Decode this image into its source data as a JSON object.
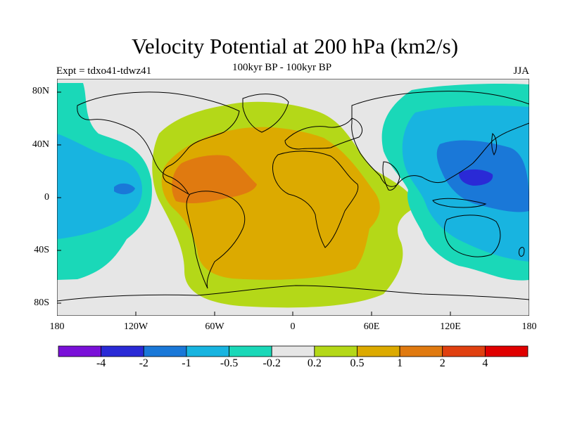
{
  "title": "Velocity Potential at 200 hPa (km2/s)",
  "left_label": "Expt = tdxo41-tdwz41",
  "center_label": "100kyr BP - 100kyr BP",
  "right_label": "JJA",
  "lat_ticks": [
    "80N",
    "40N",
    "0",
    "40S",
    "80S"
  ],
  "lon_ticks": [
    "180",
    "120W",
    "60W",
    "0",
    "60E",
    "120E",
    "180"
  ],
  "colorbar": {
    "colors": [
      "#7a10d8",
      "#2a2ad6",
      "#1a78d8",
      "#18b4e0",
      "#1ad8b8",
      "#e6e6e6",
      "#b4d818",
      "#dcaa00",
      "#e07a10",
      "#e04010",
      "#e00000"
    ],
    "labels": [
      "-4",
      "-2",
      "-1",
      "-0.5",
      "-0.2",
      "0.2",
      "0.5",
      "1",
      "2",
      "4"
    ]
  },
  "colors": {
    "background": "#e6e6e6",
    "coast": "#000000"
  }
}
